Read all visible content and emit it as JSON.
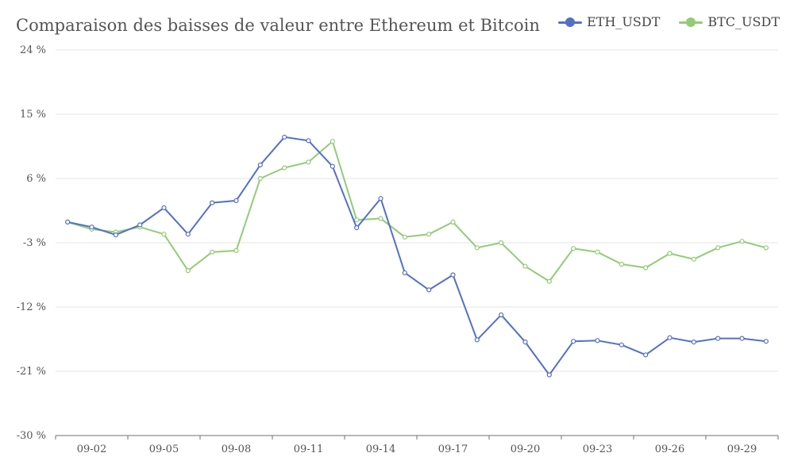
{
  "chart_data": {
    "type": "line",
    "title": "Comparaison des baisses de valeur entre Ethereum et Bitcoin",
    "x": [
      "09-01",
      "09-02",
      "09-03",
      "09-04",
      "09-05",
      "09-06",
      "09-07",
      "09-08",
      "09-09",
      "09-10",
      "09-11",
      "09-12",
      "09-13",
      "09-14",
      "09-15",
      "09-16",
      "09-17",
      "09-18",
      "09-19",
      "09-20",
      "09-21",
      "09-22",
      "09-23",
      "09-24",
      "09-25",
      "09-26",
      "09-27",
      "09-28",
      "09-29",
      "09-30"
    ],
    "x_tick_labels": [
      "09-02",
      "09-05",
      "09-08",
      "09-11",
      "09-14",
      "09-17",
      "09-20",
      "09-23",
      "09-26",
      "09-29"
    ],
    "ylim": [
      -30,
      24
    ],
    "y_ticks": [
      -30,
      -21,
      -12,
      -3,
      6,
      15,
      24
    ],
    "y_tick_suffix": " %",
    "grid": true,
    "legend_position": "top-right",
    "series": [
      {
        "name": "ETH_USDT",
        "color": "#5470c6",
        "values": [
          -0.1,
          -0.8,
          -1.9,
          -0.5,
          1.9,
          -1.8,
          2.6,
          2.9,
          7.9,
          11.8,
          11.3,
          7.7,
          -0.9,
          3.2,
          -7.2,
          -9.6,
          -7.5,
          -16.6,
          -13.1,
          -16.9,
          -21.5,
          -16.8,
          -16.7,
          -17.3,
          -18.7,
          -16.3,
          -16.9,
          -16.4,
          -16.4,
          -16.8
        ]
      },
      {
        "name": "BTC_USDT",
        "color": "#91cc75",
        "values": [
          -0.1,
          -1.1,
          -1.5,
          -0.8,
          -1.8,
          -6.9,
          -4.3,
          -4.1,
          6.0,
          7.5,
          8.3,
          11.2,
          0.2,
          0.4,
          -2.2,
          -1.8,
          -0.1,
          -3.7,
          -3.0,
          -6.3,
          -8.4,
          -3.8,
          -4.3,
          -6.0,
          -6.5,
          -4.5,
          -5.3,
          -3.7,
          -2.8,
          -3.7
        ]
      }
    ]
  }
}
